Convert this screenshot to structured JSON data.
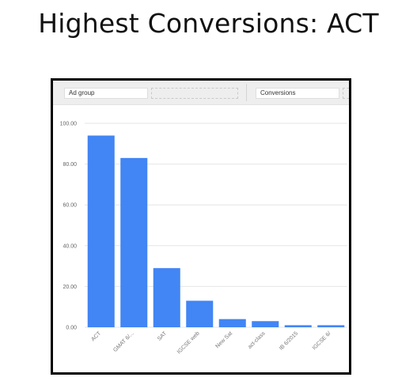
{
  "slide": {
    "title": "Highest Conversions: ACT"
  },
  "toolbar": {
    "dimension_label": "Ad group",
    "metric_label": "Conversions"
  },
  "colors": {
    "bar": "#4285f4",
    "grid": "#e6e6e6",
    "frame": "#000000"
  },
  "chart_data": {
    "type": "bar",
    "categories": [
      "ACT",
      "GMAT 6/...",
      "SAT",
      "IGCSE web",
      "New Sat",
      "act-class",
      "IB 6/2015",
      "IGCSE 6/"
    ],
    "values": [
      94,
      83,
      29,
      13,
      4,
      3,
      1,
      1
    ],
    "title": "",
    "xlabel": "",
    "ylabel": "",
    "ylim": [
      0,
      100
    ],
    "yticks": [
      "0.00",
      "20.00",
      "40.00",
      "60.00",
      "80.00",
      "100.00"
    ],
    "grid": true,
    "legend": "none"
  }
}
